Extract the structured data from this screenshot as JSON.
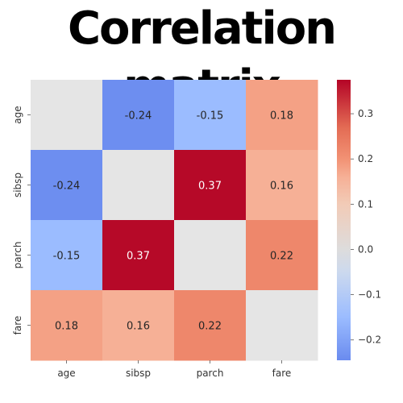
{
  "chart_data": {
    "type": "heatmap",
    "title": "Correlation matrix",
    "rows": [
      "age",
      "sibsp",
      "parch",
      "fare"
    ],
    "columns": [
      "age",
      "sibsp",
      "parch",
      "fare"
    ],
    "values": [
      [
        null,
        -0.24,
        -0.15,
        0.18
      ],
      [
        -0.24,
        null,
        0.37,
        0.16
      ],
      [
        -0.15,
        0.37,
        null,
        0.22
      ],
      [
        0.18,
        0.16,
        0.22,
        null
      ]
    ],
    "annotations": [
      [
        "",
        "-0.24",
        "-0.15",
        "0.18"
      ],
      [
        "-0.24",
        "",
        "0.37",
        "0.16"
      ],
      [
        "-0.15",
        "0.37",
        "",
        "0.22"
      ],
      [
        "0.18",
        "0.16",
        "0.22",
        ""
      ]
    ],
    "colormap": "coolwarm",
    "diagonal_color": "#e5e5e5",
    "vmin": -0.245,
    "vmax": 0.375,
    "colorbar_ticks": [
      {
        "value": 0.3,
        "label": "0.3"
      },
      {
        "value": 0.2,
        "label": "0.2"
      },
      {
        "value": 0.1,
        "label": "0.1"
      },
      {
        "value": 0.0,
        "label": "0.0"
      },
      {
        "value": -0.1,
        "label": "−0.1"
      },
      {
        "value": -0.2,
        "label": "−0.2"
      }
    ],
    "colorbar_stops": [
      {
        "value": -0.245,
        "color": "#6a8bef"
      },
      {
        "value": -0.15,
        "color": "#9bbcff"
      },
      {
        "value": -0.05,
        "color": "#ccd9ee"
      },
      {
        "value": 0.0,
        "color": "#dddcdc"
      },
      {
        "value": 0.1,
        "color": "#f2cbb7"
      },
      {
        "value": 0.16,
        "color": "#f6b096"
      },
      {
        "value": 0.2,
        "color": "#f29274"
      },
      {
        "value": 0.27,
        "color": "#e36b54"
      },
      {
        "value": 0.375,
        "color": "#b40426"
      }
    ]
  }
}
